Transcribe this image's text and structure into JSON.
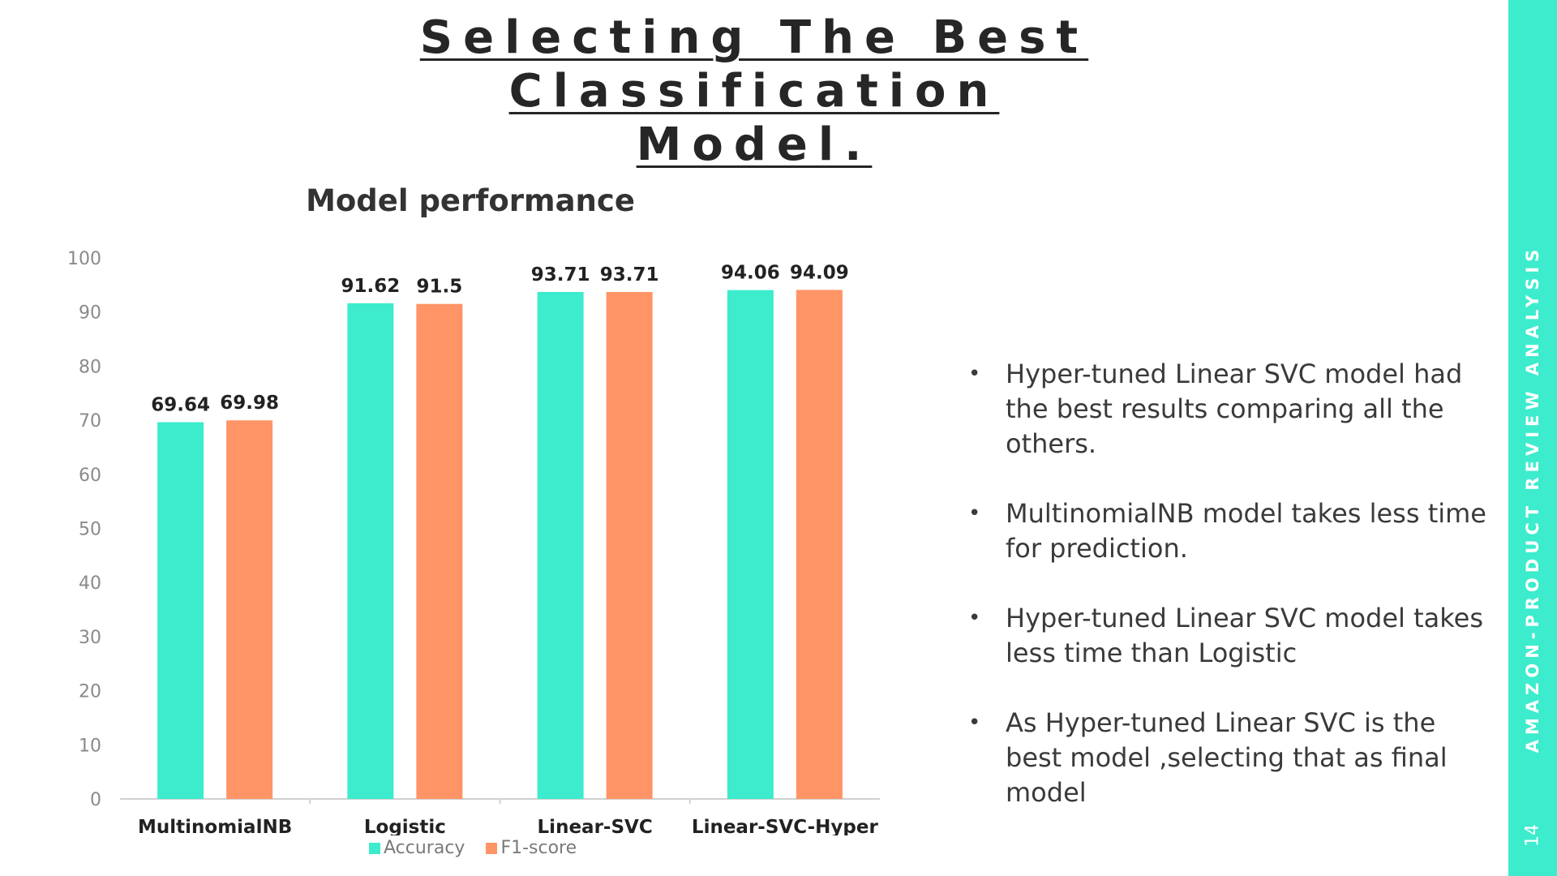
{
  "slide": {
    "title_line1": "Selecting The Best Classification",
    "title_line2": "Model.",
    "sidebar_label": "AMAZON-PRODUCT REVIEW ANALYSIS",
    "page_number": "14"
  },
  "bullets": [
    "Hyper-tuned Linear SVC model had the best results comparing all the others.",
    "MultinomialNB model takes less time for prediction.",
    "Hyper-tuned Linear SVC model takes less time than  Logistic",
    "As Hyper-tuned Linear SVC  is the best model ,selecting that as final model"
  ],
  "colors": {
    "accuracy": "#3ceccc",
    "f1": "#ff9466",
    "sidebar": "#3ceccc"
  },
  "chart_data": {
    "type": "bar",
    "title": "Model performance",
    "categories": [
      "MultinomialNB",
      "Logistic",
      "Linear-SVC",
      "Linear-SVC-Hyper"
    ],
    "series": [
      {
        "name": "Accuracy",
        "values": [
          69.64,
          91.62,
          93.71,
          94.06
        ],
        "labels": [
          "69.64",
          "91.62",
          "93.71",
          "94.06"
        ]
      },
      {
        "name": "F1-score",
        "values": [
          69.98,
          91.5,
          93.71,
          94.09
        ],
        "labels": [
          "69.98",
          "91.5",
          "93.71",
          "94.09"
        ]
      }
    ],
    "yticks": [
      "0",
      "10",
      "20",
      "30",
      "40",
      "50",
      "60",
      "70",
      "80",
      "90",
      "100"
    ],
    "ylim": [
      0,
      100
    ],
    "grid": false,
    "legend": "bottom"
  }
}
